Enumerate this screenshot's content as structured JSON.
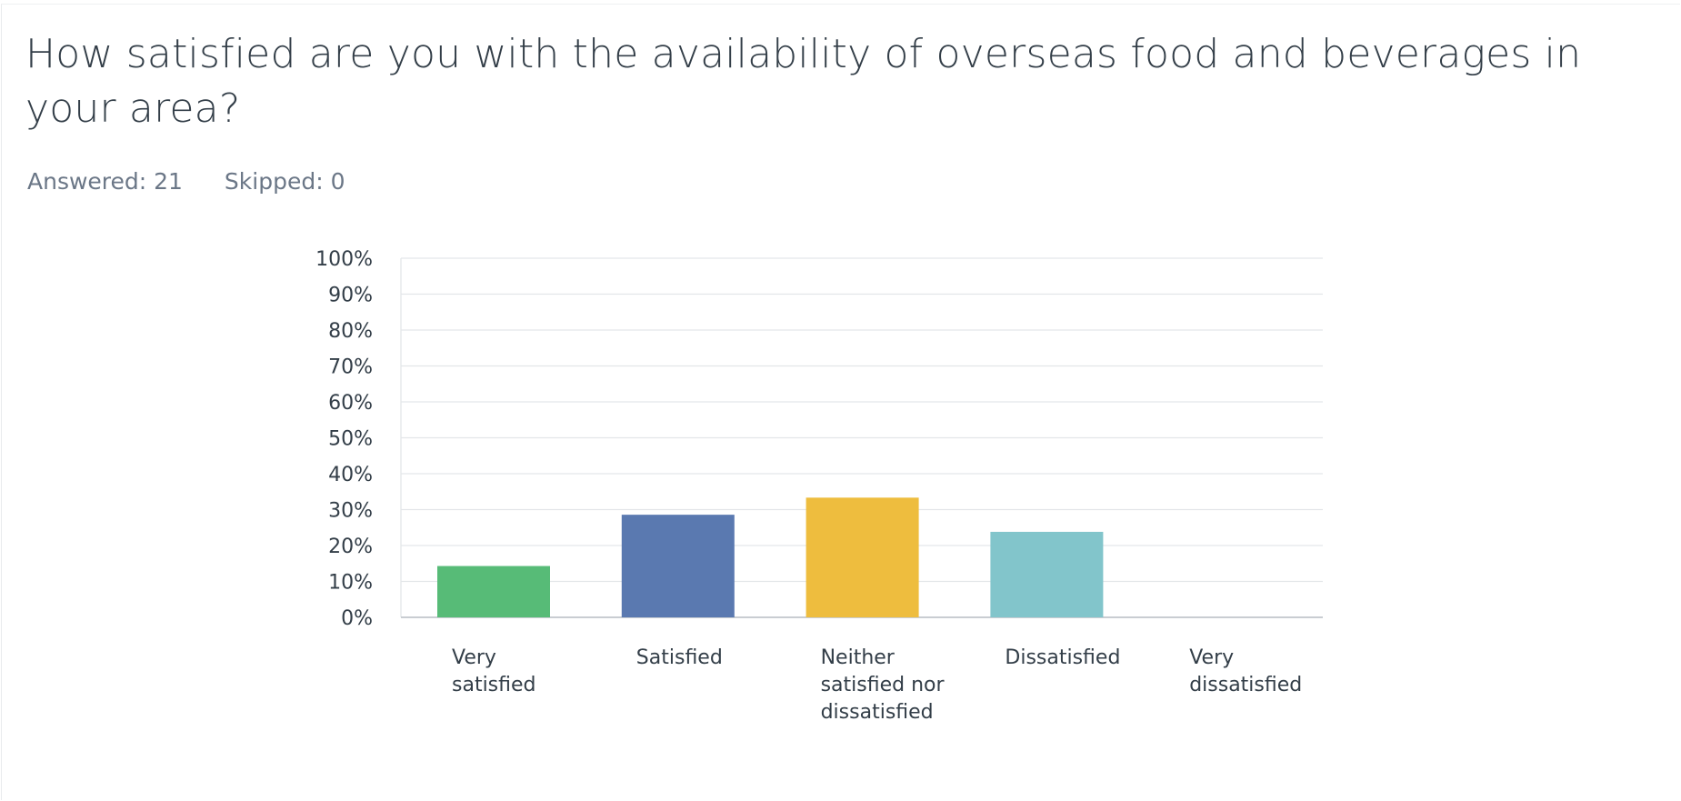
{
  "question": {
    "title": "How satisfied are you with the availability of overseas food and beverages in your area?",
    "answered": "Answered: 21",
    "skipped": "Skipped: 0"
  },
  "colors": {
    "very_satisfied": "#57bb77",
    "satisfied": "#5a79b0",
    "neutral": "#eebd3e",
    "dissatisfied": "#82c5cb",
    "very_dissatisfied": "#e86f6b",
    "grid": "#e3e6e9",
    "axis": "#c9cdd2"
  },
  "chart_data": {
    "type": "bar",
    "categories": [
      [
        "Very",
        "satisfied"
      ],
      [
        "Satisfied"
      ],
      [
        "Neither",
        "satisfied nor",
        "dissatisfied"
      ],
      [
        "Dissatisfied"
      ],
      [
        "Very",
        "dissatisfied"
      ]
    ],
    "values": [
      14.29,
      28.57,
      33.33,
      23.81,
      0
    ],
    "colors": [
      "#57bb77",
      "#5a79b0",
      "#eebd3e",
      "#82c5cb",
      "#e86f6b"
    ],
    "ylim": [
      0,
      100
    ],
    "ytick_step": 10,
    "ytick_format": "%",
    "grid": true
  }
}
